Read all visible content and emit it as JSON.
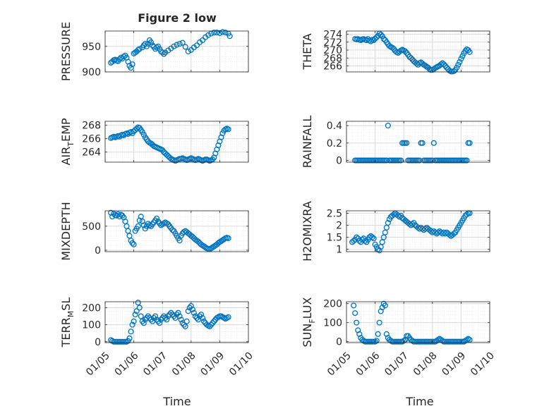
{
  "figure": {
    "title": "Figure 2 low",
    "xlabel": "Time",
    "xtick_labels": [
      "01/05",
      "01/06",
      "01/07",
      "01/08",
      "01/09",
      "01/10"
    ]
  },
  "style": {
    "marker_color": "#0072BD",
    "grid_color": "#d9d9d9",
    "axis_color": "#262626"
  },
  "chart_data": [
    {
      "type": "scatter",
      "ylabel": "PRESSURE",
      "ylim": [
        900,
        980
      ],
      "yticks": [
        900,
        950
      ],
      "x": [
        0.2,
        0.25,
        0.3,
        0.35,
        0.4,
        0.45,
        0.5,
        0.55,
        0.6,
        0.65,
        0.7,
        0.75,
        0.8,
        0.85,
        0.9,
        0.95,
        1.0,
        1.05,
        1.1,
        1.15,
        1.2,
        1.3,
        1.35,
        1.4,
        1.45,
        1.5,
        1.55,
        1.6,
        1.65,
        1.7,
        1.75,
        1.8,
        1.85,
        1.9,
        1.95,
        2.0,
        2.05,
        2.1,
        2.2,
        2.3,
        2.4,
        2.5,
        2.6,
        2.7,
        2.8,
        2.9,
        3.0,
        3.1,
        3.2,
        3.3,
        3.4,
        3.5,
        3.6,
        3.7,
        3.8,
        3.9,
        4.0,
        4.1,
        4.2,
        4.3,
        4.35
      ],
      "y": [
        918,
        920,
        923,
        924,
        922,
        921,
        925,
        928,
        926,
        930,
        932,
        928,
        920,
        912,
        908,
        915,
        936,
        938,
        940,
        943,
        945,
        948,
        952,
        955,
        950,
        955,
        962,
        958,
        952,
        949,
        945,
        948,
        950,
        945,
        940,
        938,
        935,
        938,
        942,
        946,
        950,
        953,
        955,
        957,
        949,
        940,
        943,
        948,
        952,
        958,
        962,
        968,
        972,
        975,
        977,
        977,
        976,
        978,
        977,
        975,
        970
      ]
    },
    {
      "type": "scatter",
      "ylabel": "THETA",
      "ylim": [
        264.5,
        274.8
      ],
      "yticks": [
        266,
        268,
        270,
        272,
        274
      ],
      "x": [
        0.3,
        0.35,
        0.4,
        0.45,
        0.5,
        0.55,
        0.6,
        0.65,
        0.7,
        0.75,
        0.8,
        0.85,
        0.9,
        0.95,
        1.0,
        1.05,
        1.1,
        1.15,
        1.2,
        1.25,
        1.3,
        1.35,
        1.4,
        1.45,
        1.5,
        1.55,
        1.6,
        1.65,
        1.7,
        1.75,
        1.8,
        1.85,
        1.9,
        1.95,
        2.0,
        2.05,
        2.1,
        2.15,
        2.2,
        2.25,
        2.3,
        2.35,
        2.4,
        2.45,
        2.5,
        2.55,
        2.6,
        2.65,
        2.7,
        2.75,
        2.8,
        2.85,
        2.9,
        2.95,
        3.0,
        3.05,
        3.1,
        3.15,
        3.2,
        3.25,
        3.3,
        3.35,
        3.4,
        3.45,
        3.5,
        3.55,
        3.6,
        3.65,
        3.7,
        3.75,
        3.8,
        3.85,
        3.9,
        3.95,
        4.0,
        4.05,
        4.1,
        4.15,
        4.2,
        4.25,
        4.3
      ],
      "y": [
        272.8,
        272.7,
        272.8,
        272.6,
        272.5,
        272.7,
        272.8,
        272.6,
        272.5,
        272.8,
        272.4,
        272.2,
        272.6,
        272.5,
        272.9,
        273.2,
        273.6,
        274.2,
        273.9,
        273.5,
        272.8,
        272.5,
        272.0,
        271.5,
        271.0,
        270.8,
        270.6,
        270.3,
        269.8,
        269.5,
        269.3,
        269.6,
        269.9,
        270.1,
        269.9,
        269.7,
        269.3,
        268.8,
        268.3,
        268.0,
        267.6,
        267.2,
        266.9,
        266.6,
        266.3,
        266.7,
        266.9,
        266.6,
        266.3,
        266.1,
        265.8,
        265.6,
        265.2,
        265.0,
        265.0,
        265.2,
        265.5,
        265.7,
        265.9,
        266.1,
        266.4,
        266.7,
        266.4,
        266.0,
        265.6,
        265.2,
        264.8,
        264.6,
        264.6,
        264.7,
        265.0,
        265.6,
        266.3,
        267.0,
        267.8,
        268.5,
        269.2,
        269.8,
        270.2,
        270.0,
        269.5
      ]
    },
    {
      "type": "scatter",
      "ylabel": "AIR_TEMP",
      "ylim": [
        262.5,
        268.6
      ],
      "yticks": [
        264,
        266,
        268
      ],
      "x": [
        0.2,
        0.25,
        0.3,
        0.35,
        0.4,
        0.45,
        0.5,
        0.55,
        0.6,
        0.65,
        0.7,
        0.75,
        0.8,
        0.85,
        0.9,
        0.95,
        1.0,
        1.05,
        1.1,
        1.15,
        1.2,
        1.25,
        1.3,
        1.35,
        1.4,
        1.45,
        1.5,
        1.55,
        1.6,
        1.65,
        1.7,
        1.75,
        1.8,
        1.85,
        1.9,
        1.95,
        2.0,
        2.05,
        2.1,
        2.15,
        2.2,
        2.25,
        2.3,
        2.35,
        2.4,
        2.45,
        2.5,
        2.55,
        2.6,
        2.65,
        2.7,
        2.75,
        2.8,
        2.85,
        2.9,
        2.95,
        3.0,
        3.05,
        3.1,
        3.15,
        3.2,
        3.25,
        3.3,
        3.35,
        3.4,
        3.45,
        3.5,
        3.55,
        3.6,
        3.65,
        3.7,
        3.75,
        3.8,
        3.85,
        3.9,
        3.95,
        4.0,
        4.05,
        4.1,
        4.15,
        4.2,
        4.25,
        4.3
      ],
      "y": [
        266.1,
        266.2,
        266.3,
        266.2,
        266.3,
        266.4,
        266.3,
        266.5,
        266.6,
        266.5,
        266.7,
        266.8,
        266.7,
        266.9,
        267.0,
        266.8,
        267.1,
        267.3,
        267.5,
        267.7,
        267.6,
        267.3,
        267.0,
        266.6,
        266.2,
        265.9,
        265.6,
        265.4,
        265.3,
        265.1,
        264.9,
        264.8,
        264.7,
        264.6,
        264.5,
        264.4,
        264.3,
        264.0,
        263.8,
        263.6,
        263.4,
        263.2,
        263.0,
        262.9,
        262.8,
        262.7,
        262.8,
        262.9,
        263.0,
        263.0,
        263.1,
        263.0,
        262.9,
        262.8,
        262.9,
        263.0,
        263.1,
        263.0,
        262.9,
        262.8,
        262.9,
        263.0,
        262.9,
        262.8,
        262.7,
        262.8,
        262.9,
        262.9,
        262.8,
        262.7,
        262.8,
        262.9,
        263.2,
        263.8,
        264.4,
        265.0,
        265.6,
        266.2,
        266.8,
        267.2,
        267.4,
        267.5,
        267.4
      ]
    },
    {
      "type": "scatter",
      "ylabel": "RAINFALL",
      "ylim": [
        -0.02,
        0.45
      ],
      "yticks": [
        0,
        0.2,
        0.4
      ],
      "x": [
        0.3,
        0.35,
        0.4,
        0.45,
        0.5,
        0.55,
        0.6,
        0.65,
        0.7,
        0.75,
        0.8,
        0.85,
        0.9,
        0.95,
        1.0,
        1.05,
        1.1,
        1.15,
        1.2,
        1.25,
        1.3,
        1.35,
        1.4,
        1.45,
        1.5,
        1.55,
        1.6,
        1.65,
        1.7,
        1.75,
        1.8,
        1.85,
        1.9,
        1.95,
        2.0,
        2.05,
        2.1,
        2.15,
        2.2,
        2.25,
        2.3,
        2.35,
        2.4,
        2.45,
        2.5,
        2.55,
        2.6,
        2.65,
        2.7,
        2.75,
        2.8,
        2.85,
        2.9,
        2.95,
        3.0,
        3.05,
        3.1,
        3.15,
        3.2,
        3.25,
        3.3,
        3.35,
        3.4,
        3.45,
        3.5,
        3.55,
        3.6,
        3.65,
        3.7,
        3.75,
        3.8,
        3.85,
        3.9,
        3.95,
        4.0,
        4.05,
        4.1,
        4.15,
        4.2,
        4.25,
        4.3
      ],
      "y": [
        0,
        0,
        0,
        0,
        0,
        0,
        0,
        0,
        0,
        0,
        0,
        0,
        0,
        0,
        0,
        0,
        0,
        0,
        0,
        0,
        0,
        0,
        0,
        0.4,
        0,
        0,
        0,
        0,
        0,
        0,
        0,
        0,
        0,
        0.2,
        0.2,
        0.2,
        0.2,
        0,
        0,
        0,
        0,
        0,
        0,
        0,
        0,
        0,
        0.2,
        0.2,
        0,
        0,
        0,
        0,
        0,
        0,
        0,
        0.2,
        0,
        0,
        0,
        0,
        0,
        0,
        0,
        0,
        0,
        0,
        0,
        0,
        0,
        0,
        0,
        0,
        0,
        0,
        0,
        0,
        0,
        0,
        0,
        0.2,
        0.2
      ]
    },
    {
      "type": "scatter",
      "ylabel": "MIXDEPTH",
      "ylim": [
        -30,
        820
      ],
      "yticks": [
        0,
        500
      ],
      "x": [
        0.2,
        0.25,
        0.3,
        0.35,
        0.4,
        0.45,
        0.5,
        0.55,
        0.6,
        0.65,
        0.7,
        0.75,
        0.8,
        0.85,
        0.9,
        0.95,
        1.0,
        1.05,
        1.1,
        1.15,
        1.2,
        1.25,
        1.3,
        1.35,
        1.4,
        1.45,
        1.5,
        1.55,
        1.6,
        1.65,
        1.7,
        1.75,
        1.8,
        1.85,
        1.9,
        1.95,
        2.0,
        2.05,
        2.1,
        2.15,
        2.2,
        2.25,
        2.3,
        2.35,
        2.4,
        2.45,
        2.5,
        2.55,
        2.6,
        2.65,
        2.7,
        2.75,
        2.8,
        2.85,
        2.9,
        2.95,
        3.0,
        3.05,
        3.1,
        3.15,
        3.2,
        3.25,
        3.3,
        3.35,
        3.4,
        3.45,
        3.5,
        3.55,
        3.6,
        3.65,
        3.7,
        3.75,
        3.8,
        3.85,
        3.9,
        3.95,
        4.0,
        4.05,
        4.1,
        4.15,
        4.2,
        4.25,
        4.3
      ],
      "y": [
        780,
        700,
        760,
        730,
        720,
        750,
        700,
        740,
        720,
        680,
        600,
        500,
        400,
        300,
        200,
        150,
        120,
        400,
        450,
        500,
        620,
        700,
        600,
        520,
        450,
        500,
        550,
        520,
        500,
        540,
        580,
        620,
        660,
        600,
        560,
        520,
        540,
        560,
        580,
        560,
        540,
        500,
        460,
        420,
        400,
        350,
        300,
        250,
        200,
        300,
        350,
        380,
        400,
        380,
        350,
        330,
        300,
        280,
        250,
        220,
        200,
        180,
        150,
        120,
        100,
        80,
        60,
        40,
        30,
        20,
        40,
        60,
        80,
        100,
        120,
        150,
        170,
        190,
        210,
        230,
        250,
        260,
        250
      ]
    },
    {
      "type": "scatter",
      "ylabel": "H2OMIXRA",
      "ylim": [
        0.9,
        2.6
      ],
      "yticks": [
        1,
        1.5,
        2,
        2.5
      ],
      "x": [
        0.2,
        0.25,
        0.3,
        0.35,
        0.4,
        0.45,
        0.5,
        0.55,
        0.6,
        0.65,
        0.7,
        0.75,
        0.8,
        0.85,
        0.9,
        0.95,
        1.0,
        1.05,
        1.1,
        1.15,
        1.2,
        1.25,
        1.3,
        1.35,
        1.4,
        1.45,
        1.5,
        1.55,
        1.6,
        1.65,
        1.7,
        1.75,
        1.8,
        1.85,
        1.9,
        1.95,
        2.0,
        2.05,
        2.1,
        2.15,
        2.2,
        2.25,
        2.3,
        2.35,
        2.4,
        2.45,
        2.5,
        2.55,
        2.6,
        2.65,
        2.7,
        2.75,
        2.8,
        2.85,
        2.9,
        2.95,
        3.0,
        3.05,
        3.1,
        3.15,
        3.2,
        3.25,
        3.3,
        3.35,
        3.4,
        3.45,
        3.5,
        3.55,
        3.6,
        3.65,
        3.7,
        3.75,
        3.8,
        3.85,
        3.9,
        3.95,
        4.0,
        4.05,
        4.1,
        4.15,
        4.2,
        4.25,
        4.3
      ],
      "y": [
        1.3,
        1.35,
        1.4,
        1.5,
        1.45,
        1.35,
        1.3,
        1.4,
        1.45,
        1.35,
        1.3,
        1.4,
        1.5,
        1.55,
        1.5,
        1.45,
        1.2,
        1.1,
        1.0,
        0.95,
        1.1,
        1.3,
        1.5,
        1.7,
        1.9,
        2.1,
        2.25,
        2.35,
        2.4,
        2.45,
        2.5,
        2.45,
        2.4,
        2.35,
        2.4,
        2.3,
        2.25,
        2.2,
        2.15,
        2.1,
        2.05,
        2.0,
        2.05,
        2.1,
        2.0,
        1.95,
        1.9,
        1.85,
        1.9,
        1.85,
        1.8,
        1.85,
        1.9,
        1.85,
        1.8,
        1.75,
        1.7,
        1.75,
        1.7,
        1.65,
        1.7,
        1.75,
        1.7,
        1.65,
        1.7,
        1.65,
        1.7,
        1.65,
        1.6,
        1.55,
        1.6,
        1.65,
        1.7,
        1.8,
        1.9,
        2.0,
        2.1,
        2.2,
        2.3,
        2.4,
        2.45,
        2.5,
        2.5
      ]
    },
    {
      "type": "scatter",
      "ylabel": "TERR_MSL",
      "ylim": [
        -5,
        235
      ],
      "yticks": [
        0,
        100,
        200
      ],
      "x": [
        0.2,
        0.25,
        0.3,
        0.35,
        0.4,
        0.45,
        0.5,
        0.55,
        0.6,
        0.65,
        0.7,
        0.75,
        0.8,
        0.85,
        0.9,
        0.95,
        1.0,
        1.05,
        1.1,
        1.15,
        1.2,
        1.25,
        1.3,
        1.35,
        1.4,
        1.45,
        1.5,
        1.55,
        1.6,
        1.65,
        1.7,
        1.75,
        1.8,
        1.85,
        1.9,
        1.95,
        2.0,
        2.05,
        2.1,
        2.15,
        2.2,
        2.25,
        2.3,
        2.35,
        2.4,
        2.45,
        2.5,
        2.55,
        2.6,
        2.65,
        2.7,
        2.75,
        2.8,
        2.85,
        2.9,
        2.95,
        3.0,
        3.05,
        3.1,
        3.15,
        3.2,
        3.25,
        3.3,
        3.35,
        3.4,
        3.45,
        3.5,
        3.55,
        3.6,
        3.65,
        3.7,
        3.75,
        3.8,
        3.85,
        3.9,
        3.95,
        4.0,
        4.05,
        4.1,
        4.15,
        4.2,
        4.25,
        4.3
      ],
      "y": [
        10,
        5,
        0,
        0,
        0,
        0,
        0,
        0,
        0,
        0,
        0,
        0,
        5,
        20,
        60,
        100,
        120,
        160,
        180,
        230,
        200,
        150,
        120,
        110,
        130,
        140,
        150,
        140,
        130,
        120,
        140,
        150,
        130,
        120,
        110,
        130,
        140,
        150,
        140,
        130,
        150,
        160,
        170,
        160,
        150,
        140,
        160,
        170,
        150,
        130,
        110,
        100,
        90,
        120,
        180,
        200,
        210,
        190,
        170,
        150,
        140,
        130,
        150,
        160,
        140,
        120,
        110,
        100,
        95,
        90,
        100,
        110,
        120,
        130,
        140,
        145,
        150,
        150,
        145,
        140,
        135,
        140,
        145
      ]
    },
    {
      "type": "scatter",
      "ylabel": "SUN_FLUX",
      "ylim": [
        -5,
        210
      ],
      "yticks": [
        0,
        100,
        200
      ],
      "x": [
        0.25,
        0.3,
        0.35,
        0.4,
        0.45,
        0.5,
        0.55,
        0.6,
        0.65,
        0.7,
        0.75,
        0.8,
        0.85,
        0.9,
        0.95,
        1.0,
        1.05,
        1.1,
        1.15,
        1.2,
        1.25,
        1.3,
        1.35,
        1.4,
        1.45,
        1.5,
        1.55,
        1.6,
        1.65,
        1.7,
        1.75,
        1.8,
        1.85,
        1.9,
        1.95,
        2.0,
        2.05,
        2.1,
        2.15,
        2.2,
        2.25,
        2.3,
        2.35,
        2.4,
        2.45,
        2.5,
        2.55,
        2.6,
        2.65,
        2.7,
        2.75,
        2.8,
        2.85,
        2.9,
        2.95,
        3.0,
        3.05,
        3.1,
        3.15,
        3.2,
        3.25,
        3.3,
        3.35,
        3.4,
        3.45,
        3.5,
        3.55,
        3.6,
        3.65,
        3.7,
        3.75,
        3.8,
        3.85,
        3.9,
        3.95,
        4.0,
        4.05,
        4.1,
        4.15,
        4.2,
        4.25,
        4.3
      ],
      "y": [
        190,
        150,
        100,
        60,
        40,
        20,
        10,
        5,
        0,
        0,
        0,
        0,
        0,
        0,
        0,
        0,
        5,
        40,
        100,
        160,
        180,
        200,
        190,
        40,
        20,
        10,
        5,
        0,
        0,
        0,
        0,
        0,
        0,
        0,
        0,
        5,
        10,
        30,
        30,
        20,
        10,
        5,
        0,
        0,
        0,
        0,
        0,
        0,
        0,
        0,
        0,
        0,
        0,
        0,
        0,
        0,
        0,
        0,
        5,
        10,
        15,
        10,
        5,
        0,
        0,
        0,
        0,
        0,
        0,
        0,
        0,
        0,
        0,
        0,
        0,
        0,
        0,
        0,
        5,
        10,
        15,
        10
      ]
    }
  ]
}
